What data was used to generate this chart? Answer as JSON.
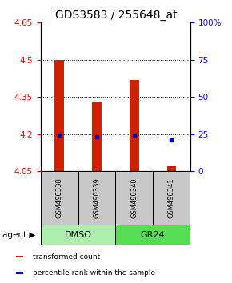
{
  "title": "GDS3583 / 255648_at",
  "samples": [
    "GSM490338",
    "GSM490339",
    "GSM490340",
    "GSM490341"
  ],
  "red_values": [
    4.5,
    4.33,
    4.42,
    4.07
  ],
  "blue_values": [
    4.195,
    4.19,
    4.195,
    4.178
  ],
  "baseline": 4.05,
  "ylim_left": [
    4.05,
    4.65
  ],
  "ylim_right": [
    0,
    100
  ],
  "yticks_left": [
    4.05,
    4.2,
    4.35,
    4.5,
    4.65
  ],
  "yticks_right": [
    0,
    25,
    50,
    75,
    100
  ],
  "ytick_labels_right": [
    "0",
    "25",
    "50",
    "75",
    "100%"
  ],
  "gridlines": [
    4.2,
    4.35,
    4.5
  ],
  "groups": [
    {
      "label": "DMSO",
      "cols": [
        0,
        1
      ],
      "color": "#adf0ad"
    },
    {
      "label": "GR24",
      "cols": [
        2,
        3
      ],
      "color": "#55dd55"
    }
  ],
  "bar_color": "#cc2200",
  "blue_color": "#0000cc",
  "bar_width": 0.25,
  "legend": [
    {
      "color": "#cc2200",
      "label": "transformed count"
    },
    {
      "color": "#0000cc",
      "label": "percentile rank within the sample"
    }
  ],
  "sample_box_color": "#c8c8c8",
  "title_fontsize": 10,
  "tick_fontsize": 7.5,
  "sample_fontsize": 6,
  "group_fontsize": 8,
  "legend_fontsize": 6.5
}
